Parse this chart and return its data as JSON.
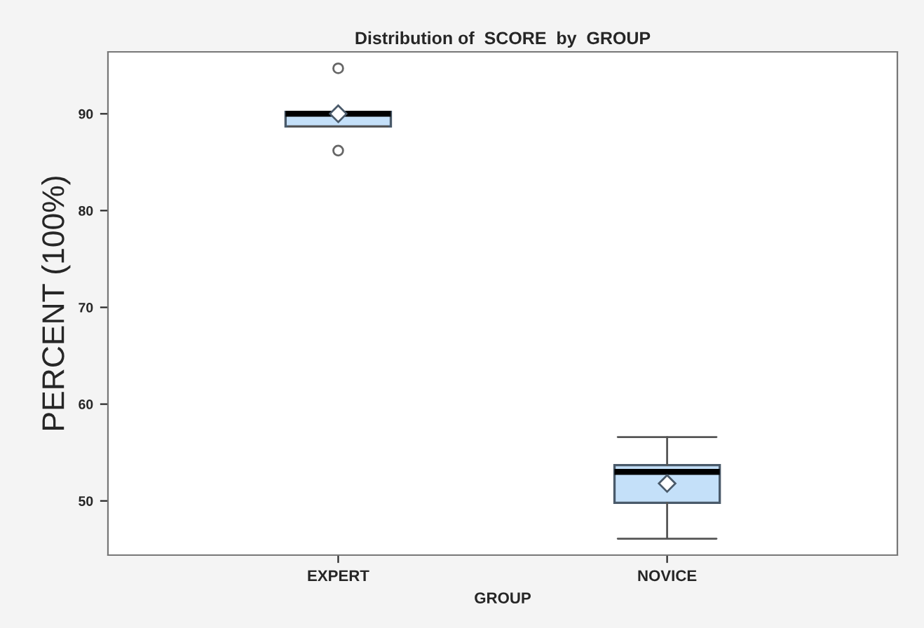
{
  "chart_data": {
    "type": "box",
    "title": "Distribution of  SCORE  by  GROUP",
    "xlabel": "GROUP",
    "ylabel": "PERCENT (100%)",
    "categories": [
      "EXPERT",
      "NOVICE"
    ],
    "color": "#c4e0f9",
    "boxes": [
      {
        "low": 88.7,
        "q1": 88.7,
        "median": 90.0,
        "q3": 90.2,
        "high": 90.2,
        "mean": 90.0,
        "outliers": [
          94.7,
          86.2
        ]
      },
      {
        "low": 46.1,
        "q1": 49.8,
        "median": 53.0,
        "q3": 53.7,
        "high": 56.6,
        "mean": 51.8
      }
    ],
    "ylim": [
      44.4,
      96.4
    ],
    "yticks": [
      50,
      60,
      70,
      80,
      90
    ],
    "grid": false
  }
}
